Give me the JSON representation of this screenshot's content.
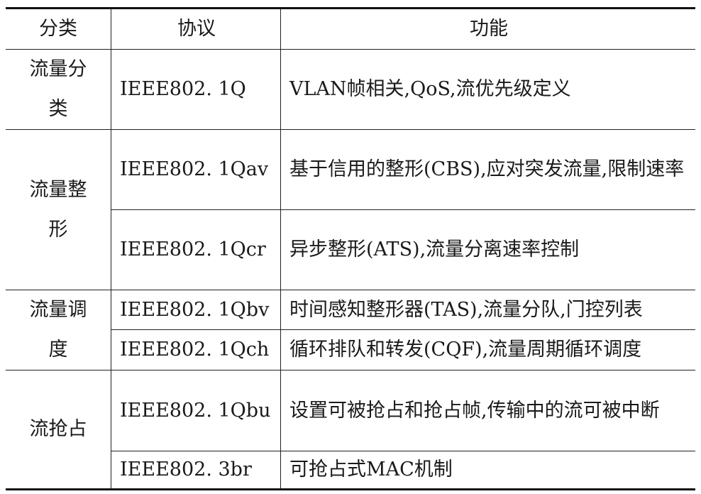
{
  "headers": {
    "category": "分类",
    "protocol": "协议",
    "function": "功能"
  },
  "groups": [
    {
      "category": "流量分类",
      "rows": [
        {
          "protocol": "IEEE802. 1Q",
          "function": "VLAN帧相关,QoS,流优先级定义"
        }
      ]
    },
    {
      "category": "流量整形",
      "rows": [
        {
          "protocol": "IEEE802. 1Qav",
          "function": "基于信用的整形(CBS),应对突发流量,限制速率"
        },
        {
          "protocol": "IEEE802. 1Qcr",
          "function": "异步整形(ATS),流量分离速率控制"
        }
      ]
    },
    {
      "category": "流量调度",
      "rows": [
        {
          "protocol": "IEEE802. 1Qbv",
          "function": "时间感知整形器(TAS),流量分队,门控列表"
        },
        {
          "protocol": "IEEE802. 1Qch",
          "function": "循环排队和转发(CQF),流量周期循环调度"
        }
      ]
    },
    {
      "category": "流抢占",
      "rows": [
        {
          "protocol": "IEEE802. 1Qbu",
          "function": "设置可被抢占和抢占帧,传输中的流可被中断"
        },
        {
          "protocol": "IEEE802. 3br",
          "function": "可抢占式MAC机制"
        }
      ]
    }
  ]
}
